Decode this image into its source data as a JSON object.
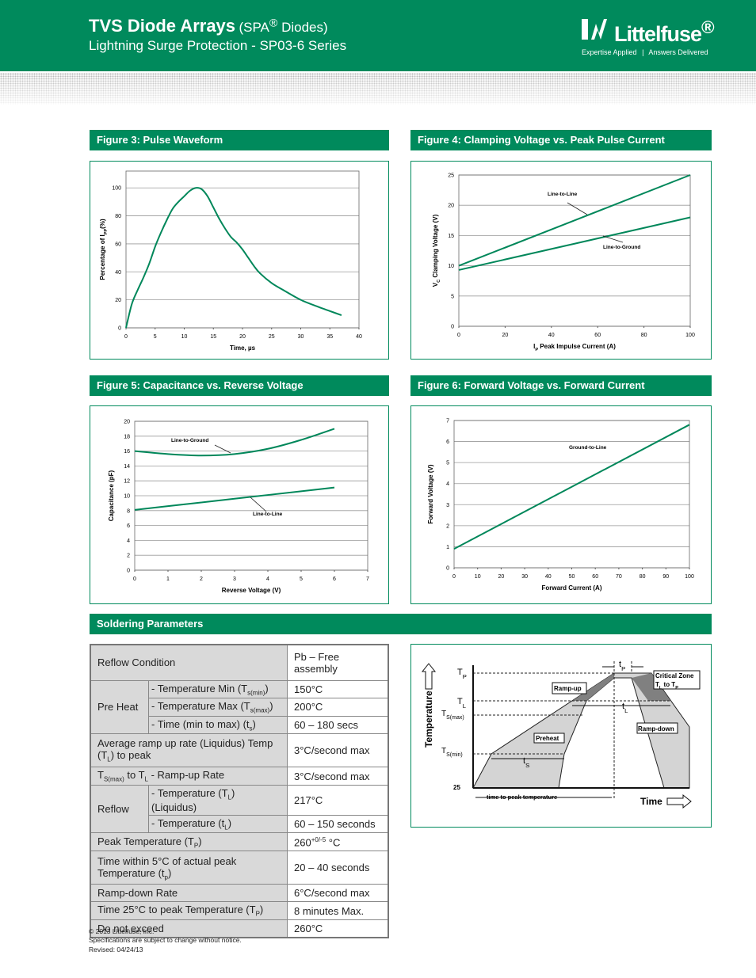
{
  "header": {
    "title": "TVS Diode Arrays",
    "title_note": [
      "(SPA",
      {
        "sup": "®"
      },
      " Diodes)"
    ],
    "subtitle": "Lightning Surge Protection - SP03-6 Series",
    "logo": [
      "Littelfuse",
      {
        "sup": "®"
      }
    ],
    "tagline": [
      "Expertise Applied",
      "Answers Delivered"
    ]
  },
  "chart_data": [
    {
      "type": "line",
      "title": "Figure 3: Pulse Waveform",
      "x_label": "Time, µs",
      "y_label": [
        "Percentage of I",
        {
          "sub": "PP"
        },
        "(%)"
      ],
      "x": [
        0,
        1,
        2,
        3,
        4,
        5,
        6,
        7,
        8,
        9,
        10,
        11,
        12,
        13,
        14,
        15,
        16,
        17,
        18,
        19,
        20,
        21,
        22,
        23,
        25,
        27,
        30,
        33,
        35,
        37
      ],
      "series": [
        {
          "color": "#00875a",
          "values": [
            0,
            17,
            27,
            36,
            46,
            58,
            68,
            77,
            85,
            90,
            94,
            98,
            100,
            99,
            94,
            86,
            78,
            71,
            65,
            61,
            56,
            50,
            44,
            39,
            32,
            27,
            20,
            15,
            12,
            9
          ]
        }
      ],
      "xlim": [
        0,
        40
      ],
      "ylim": [
        0,
        112
      ],
      "xticks": [
        0,
        5,
        10,
        15,
        20,
        25,
        30,
        35,
        40
      ],
      "yticks": [
        0,
        20,
        40,
        60,
        80,
        100
      ],
      "grid": true
    },
    {
      "type": "line",
      "title": "Figure 4:  Clamping Voltage vs. Peak Pulse Current",
      "x_label": [
        "I",
        {
          "sub": "P"
        },
        " Peak Impulse Current (A)"
      ],
      "y_label": [
        "V",
        {
          "sub": "C"
        },
        " Clamping Voltage (V)"
      ],
      "x": [
        0,
        100
      ],
      "series": [
        {
          "name": "Line-to-Line",
          "color": "#00875a",
          "values": [
            10,
            25
          ]
        },
        {
          "name": "Line-to-Ground",
          "color": "#00875a",
          "values": [
            9.3,
            18
          ]
        }
      ],
      "xlim": [
        0,
        100
      ],
      "ylim": [
        0,
        25
      ],
      "xticks": [
        0,
        20,
        40,
        60,
        80,
        100
      ],
      "yticks": [
        0,
        5,
        10,
        15,
        20,
        25
      ],
      "grid": true
    },
    {
      "type": "line",
      "title": "Figure 5: Capacitance vs. Reverse Voltage",
      "x_label": "Reverse Voltage (V)",
      "y_label": "Capacitance (pF)",
      "x": [
        0,
        1,
        2,
        3,
        4,
        5,
        6
      ],
      "series": [
        {
          "name": "Line-to-Ground",
          "color": "#00875a",
          "values": [
            16,
            15.6,
            15.4,
            15.6,
            16.3,
            17.5,
            19
          ]
        },
        {
          "name": "Line-to-Line",
          "color": "#00875a",
          "values": [
            8.1,
            8.6,
            9.1,
            9.6,
            10.1,
            10.6,
            11.1
          ]
        }
      ],
      "xlim": [
        0,
        7
      ],
      "ylim": [
        0,
        20
      ],
      "xticks": [
        0,
        1,
        2,
        3,
        4,
        5,
        6,
        7
      ],
      "yticks": [
        0,
        2,
        4,
        6,
        8,
        10,
        12,
        14,
        16,
        18,
        20
      ],
      "grid": true
    },
    {
      "type": "line",
      "title": "Figure 6:  Forward Voltage vs. Forward Current",
      "x_label": "Forward Current (A)",
      "y_label": "Forward Voltage  (V)",
      "x": [
        0,
        100
      ],
      "series": [
        {
          "name": "Ground-to-Line",
          "color": "#00875a",
          "values": [
            0.9,
            6.8
          ]
        }
      ],
      "xlim": [
        0,
        100
      ],
      "ylim": [
        0,
        7
      ],
      "xticks": [
        0,
        10,
        20,
        30,
        40,
        50,
        60,
        70,
        80,
        90,
        100
      ],
      "yticks": [
        0,
        1,
        2,
        3,
        4,
        5,
        6,
        7
      ],
      "grid": true
    }
  ],
  "soldering": {
    "title": "Soldering Parameters",
    "rows": [
      {
        "label": "Reflow Condition",
        "value": "Pb – Free assembly"
      },
      {
        "label": "Pre Heat",
        "items": [
          {
            "label": [
              "- Temperature Min (T",
              {
                "sub": "s(min)"
              },
              ")"
            ],
            "value": "150°C"
          },
          {
            "label": [
              "- Temperature Max (T",
              {
                "sub": "s(max)"
              },
              ")"
            ],
            "value": "200°C"
          },
          {
            "label": [
              "- Time (min to max) (t",
              {
                "sub": "s"
              },
              ")"
            ],
            "value": "60 – 180 secs"
          }
        ]
      },
      {
        "label": [
          "Average ramp up rate (Liquidus) Temp (T",
          {
            "sub": "L"
          },
          ") to peak"
        ],
        "value": "3°C/second max"
      },
      {
        "label": [
          "T",
          {
            "sub": "S(max)"
          },
          " to T",
          {
            "sub": "L"
          },
          " - Ramp-up Rate"
        ],
        "value": "3°C/second max"
      },
      {
        "label": "Reflow",
        "items": [
          {
            "label": [
              "- Temperature (T",
              {
                "sub": "L"
              },
              ") (Liquidus)"
            ],
            "value": "217°C"
          },
          {
            "label": [
              "- Temperature (t",
              {
                "sub": "L"
              },
              ")"
            ],
            "value": "60 – 150 seconds"
          }
        ]
      },
      {
        "label": [
          "Peak Temperature (T",
          {
            "sub": "P"
          },
          ")"
        ],
        "value": [
          "260",
          {
            "sup": "+0/-5"
          },
          " °C"
        ]
      },
      {
        "label": [
          "Time within 5°C of actual peak Temperature (t",
          {
            "sub": "p"
          },
          ")"
        ],
        "value": "20 – 40 seconds"
      },
      {
        "label": "Ramp-down Rate",
        "value": "6°C/second max"
      },
      {
        "label": [
          "Time 25°C to peak Temperature (T",
          {
            "sub": "P"
          },
          ")"
        ],
        "value": "8 minutes Max."
      },
      {
        "label": "Do not exceed",
        "value": "260°C"
      }
    ]
  },
  "reflow": {
    "tp_axis": [
      "T",
      {
        "sub": "P"
      }
    ],
    "tl_axis": [
      "T",
      {
        "sub": "L"
      }
    ],
    "tsmax": [
      "T",
      {
        "sub": "S(max)"
      }
    ],
    "tsmin": [
      "T",
      {
        "sub": "S(min)"
      }
    ],
    "t25": "25",
    "y_label": "Temperature",
    "x_label": "Time",
    "tp": [
      "t",
      {
        "sub": "P"
      }
    ],
    "tl": [
      "t",
      {
        "sub": "L"
      }
    ],
    "ts": [
      "t",
      {
        "sub": "S"
      }
    ],
    "ramp_up": "Ramp-up",
    "ramp_down": "Ramp-down",
    "preheat": "Preheat",
    "critical_zone": "Critical Zone",
    "critical_range": [
      "T",
      {
        "sub": "L"
      },
      " to T",
      {
        "sub": "P"
      }
    ],
    "time_to_peak": "time to peak temperature"
  },
  "footer": [
    "© 2013 Littelfuse, Inc.",
    "Specifications are subject to change without notice.",
    "Revised: 04/24/13"
  ]
}
